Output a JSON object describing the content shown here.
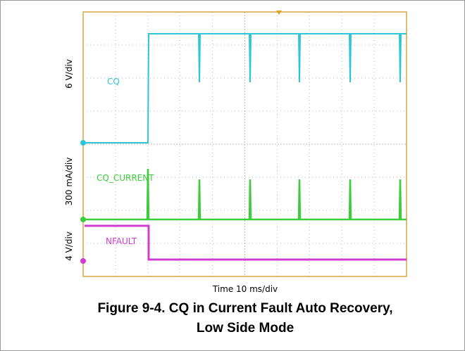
{
  "figure": {
    "channels": [
      {
        "scale": "6 V/div",
        "name": "CQ"
      },
      {
        "scale": "300 mA/div",
        "name": "CQ_CURRENT"
      },
      {
        "scale": "4 V/div",
        "name": "NFAULT"
      }
    ],
    "time_scale": "Time 10 ms/div",
    "caption": [
      "Figure 9-4. CQ in Current Fault Auto Recovery,",
      "Low Side Mode"
    ]
  }
}
